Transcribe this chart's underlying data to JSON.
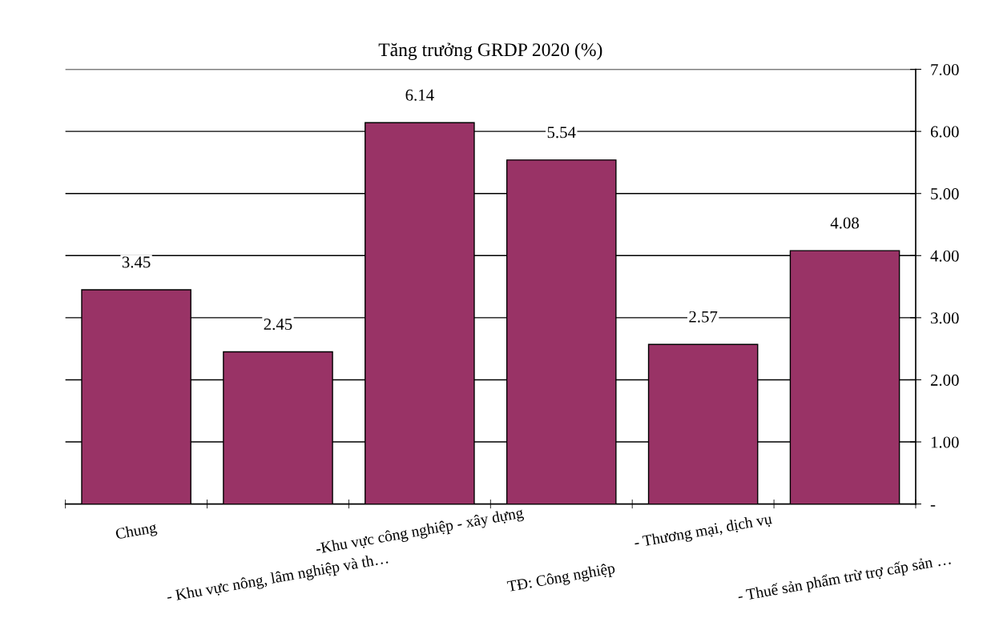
{
  "chart_data": {
    "type": "bar",
    "title": "Tăng trưởng GRDP 2020 (%)",
    "categories": [
      "Chung",
      "- Khu vực nông, lâm nghiệp và th…",
      "-Khu vực công nghiệp - xây dựng",
      "TĐ: Công nghiệp",
      "- Thương mại, dịch vụ",
      "- Thuế sản phẩm trừ trợ cấp sản …"
    ],
    "values": [
      3.45,
      2.45,
      6.14,
      5.54,
      2.57,
      4.08
    ],
    "color": "#993366",
    "data_labels": true,
    "grid": "y",
    "legend": false,
    "ylim": [
      0,
      7
    ],
    "yticks": [
      {
        "value": 0,
        "label": "-"
      },
      {
        "value": 1,
        "label": "1.00"
      },
      {
        "value": 2,
        "label": "2.00"
      },
      {
        "value": 3,
        "label": "3.00"
      },
      {
        "value": 4,
        "label": "4.00"
      },
      {
        "value": 5,
        "label": "5.00"
      },
      {
        "value": 6,
        "label": "6.00"
      },
      {
        "value": 7,
        "label": "7.00"
      }
    ]
  }
}
